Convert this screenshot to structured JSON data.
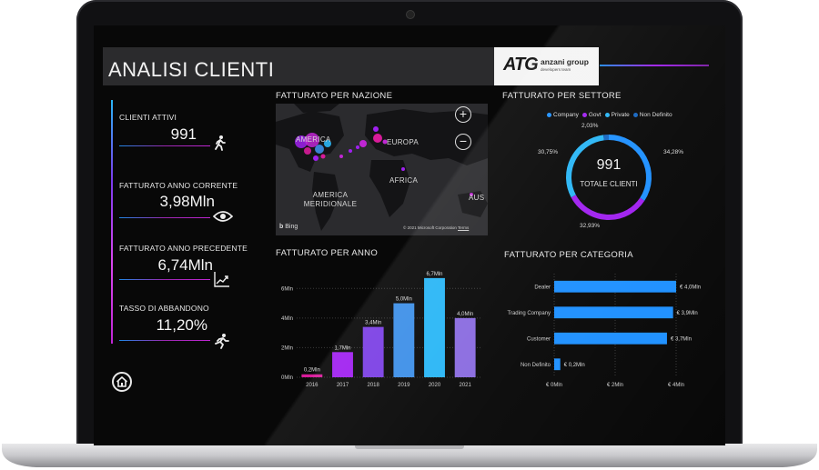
{
  "header": {
    "title": "ANALISI CLIENTI",
    "logo": {
      "mark": "ATG",
      "company": "anzani group",
      "tagline": "developers team"
    }
  },
  "kpis": [
    {
      "label": "CLIENTI ATTIVI",
      "value": "991",
      "icon": "walking-person-icon"
    },
    {
      "label": "FATTURATO ANNO CORRENTE",
      "value": "3,98Mln",
      "icon": "eye-icon"
    },
    {
      "label": "FATTURATO ANNO PRECEDENTE",
      "value": "6,74Mln",
      "icon": "trend-chart-icon"
    },
    {
      "label": "TASSO DI ABBANDONO",
      "value": "11,20%",
      "icon": "running-person-icon"
    }
  ],
  "map": {
    "title": "FATTURATO PER NAZIONE",
    "regions": [
      "AMERICA",
      "EUROPA",
      "AFRICA",
      "AMERICA MERIDIONALE",
      "AUS"
    ],
    "bing": "Bing",
    "copyright": "© 2021 Microsoft Corporation",
    "terms": "Terms",
    "zoom_in": "+",
    "zoom_out": "−"
  },
  "sector": {
    "title": "FATTURATO PER SETTORE",
    "legend": [
      {
        "name": "Company",
        "color": "#1e90ff"
      },
      {
        "name": "Govt",
        "color": "#a020f0"
      },
      {
        "name": "Private",
        "color": "#29b6f6"
      },
      {
        "name": "Non Definito",
        "color": "#1565c0"
      }
    ],
    "center_value": "991",
    "center_label": "TOTALE CLIENTI",
    "slices": [
      {
        "label": "34,28%",
        "value": 34.28,
        "color": "#1e90ff"
      },
      {
        "label": "32,93%",
        "value": 32.93,
        "color": "#a020f0"
      },
      {
        "label": "30,75%",
        "value": 30.75,
        "color": "#29b6f6"
      },
      {
        "label": "2,03%",
        "value": 2.03,
        "color": "#1565c0"
      }
    ]
  },
  "chart_data": [
    {
      "type": "bar",
      "title": "FATTURATO PER ANNO",
      "categories": [
        "2016",
        "2017",
        "2018",
        "2019",
        "2020",
        "2021"
      ],
      "values": [
        0.2,
        1.7,
        3.4,
        5.0,
        6.7,
        4.0
      ],
      "data_labels": [
        "0,2Mln",
        "1,7Mln",
        "3,4Mln",
        "5,0Mln",
        "6,7Mln",
        "4,0Mln"
      ],
      "colors": [
        "#d81b9a",
        "#a020f0",
        "#7b3fe4",
        "#3d8fe8",
        "#29b6f6",
        "#8a6be0"
      ],
      "y_ticks": [
        "0Mln",
        "2Mln",
        "4Mln",
        "6Mln"
      ],
      "ylim": [
        0,
        7
      ]
    },
    {
      "type": "bar",
      "orientation": "horizontal",
      "title": "FATTURATO PER CATEGORIA",
      "categories": [
        "Dealer",
        "Trading Company",
        "Customer",
        "Non Definito"
      ],
      "values": [
        4.0,
        3.9,
        3.7,
        0.2
      ],
      "data_labels": [
        "€ 4,0Mln",
        "€ 3,9Mln",
        "€ 3,7Mln",
        "€ 0,2Mln"
      ],
      "color": "#1e90ff",
      "x_ticks": [
        "€ 0Mln",
        "€ 2Mln",
        "€ 4Mln"
      ],
      "xlim": [
        0,
        4
      ]
    }
  ]
}
